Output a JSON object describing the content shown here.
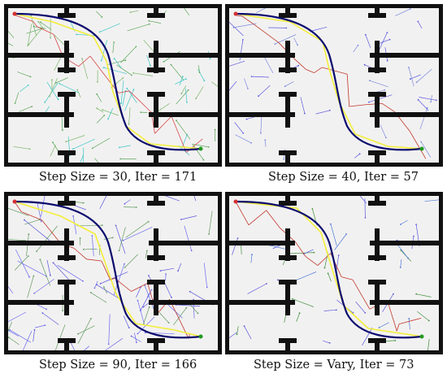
{
  "panels": [
    {
      "caption": "Step Size = 30, Iter = 171",
      "tree_colors": [
        "#3cc7c7",
        "#7ab86b",
        "#59a85a"
      ],
      "tree_accent": "#d84a4a",
      "density": "high"
    },
    {
      "caption": "Step Size = 40, Iter = 57",
      "tree_colors": [
        "#5a5adf",
        "#7a8ae0"
      ],
      "tree_accent": "#c0392b",
      "density": "medium"
    },
    {
      "caption": "Step Size = 90, Iter = 166",
      "tree_colors": [
        "#5a5adf",
        "#6b6bf0",
        "#5f9a5f"
      ],
      "tree_accent": "#c0392b",
      "density": "high"
    },
    {
      "caption": "Step Size = Vary, Iter = 73",
      "tree_colors": [
        "#4a78d8",
        "#5a5adf",
        "#3f8f3f"
      ],
      "tree_accent": "#c0392b",
      "density": "medium"
    }
  ],
  "colors": {
    "wall": "#111111",
    "floor": "#f2f1f1",
    "smooth_path": "#0a0a6e",
    "raw_path": "#f2ee3a",
    "start": "#d43030",
    "goal": "#1f9a1f"
  }
}
